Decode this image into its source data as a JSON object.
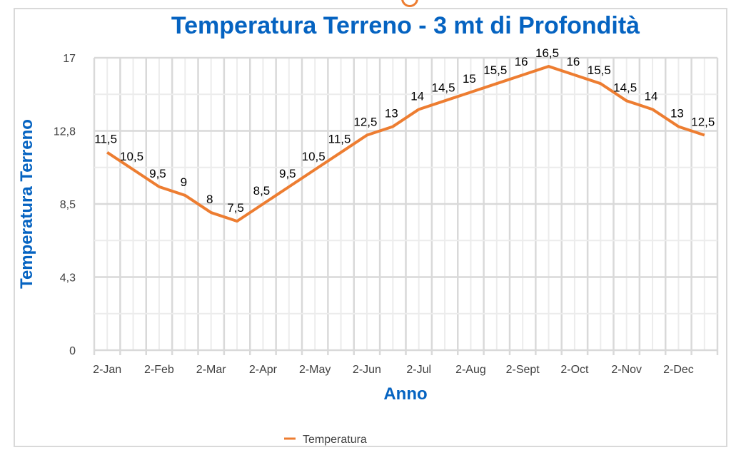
{
  "chart_data": {
    "type": "line",
    "title": "Temperatura Terreno - 3 mt di Profondità",
    "xlabel": "Anno",
    "ylabel": "Temperatura Terreno",
    "ylim": [
      0,
      17
    ],
    "yticks": [
      "0",
      "4,3",
      "8,5",
      "12,8",
      "17"
    ],
    "ytick_values": [
      0,
      4.25,
      8.5,
      12.75,
      17
    ],
    "xtick_labels": [
      "2-Jan",
      "2-Feb",
      "2-Mar",
      "2-Apr",
      "2-May",
      "2-Jun",
      "2-Jul",
      "2-Aug",
      "2-Sept",
      "2-Oct",
      "2-Nov",
      "2-Dec"
    ],
    "grid": true,
    "legend_position": "bottom",
    "series": [
      {
        "name": "Temperatura",
        "color": "#ED7D31",
        "values": [
          11.5,
          10.5,
          9.5,
          9,
          8,
          7.5,
          8.5,
          9.5,
          10.5,
          11.5,
          12.5,
          13,
          14,
          14.5,
          15,
          15.5,
          16,
          16.5,
          16,
          15.5,
          14.5,
          14,
          13,
          12.5
        ],
        "labels": [
          "11,5",
          "10,5",
          "9,5",
          "9",
          "8",
          "7,5",
          "8,5",
          "9,5",
          "10,5",
          "11,5",
          "12,5",
          "13",
          "14",
          "14,5",
          "15",
          "15,5",
          "16",
          "16,5",
          "16",
          "15,5",
          "14,5",
          "14",
          "13",
          "12,5"
        ]
      }
    ]
  }
}
